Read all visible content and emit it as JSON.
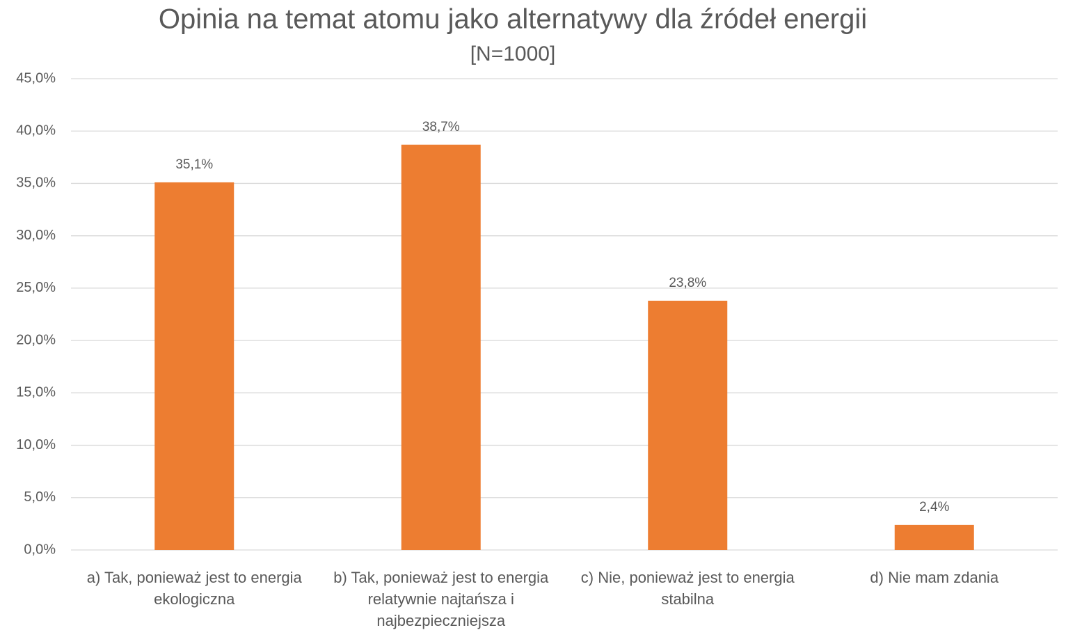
{
  "chart_data": {
    "type": "bar",
    "title": "Opinia na temat atomu jako alternatywy dla źródeł energii",
    "subtitle": "[N=1000]",
    "categories": [
      "a) Tak, ponieważ jest to energia ekologiczna",
      "b) Tak, ponieważ jest to energia relatywnie najtańsza i najbezpieczniejsza",
      "c) Nie, ponieważ jest to energia stabilna",
      "d) Nie mam zdania"
    ],
    "values": [
      35.1,
      38.7,
      23.8,
      2.4
    ],
    "value_labels": [
      "35,1%",
      "38,7%",
      "23,8%",
      "2,4%"
    ],
    "color": "#ed7d31",
    "ylim": [
      0,
      45
    ],
    "yticks": [
      {
        "value": 0,
        "label": "0,0%"
      },
      {
        "value": 5,
        "label": "5,0%"
      },
      {
        "value": 10,
        "label": "10,0%"
      },
      {
        "value": 15,
        "label": "15,0%"
      },
      {
        "value": 20,
        "label": "20,0%"
      },
      {
        "value": 25,
        "label": "25,0%"
      },
      {
        "value": 30,
        "label": "30,0%"
      },
      {
        "value": 35,
        "label": "35,0%"
      },
      {
        "value": 40,
        "label": "40,0%"
      },
      {
        "value": 45,
        "label": "45,0%"
      }
    ],
    "grid": true
  }
}
